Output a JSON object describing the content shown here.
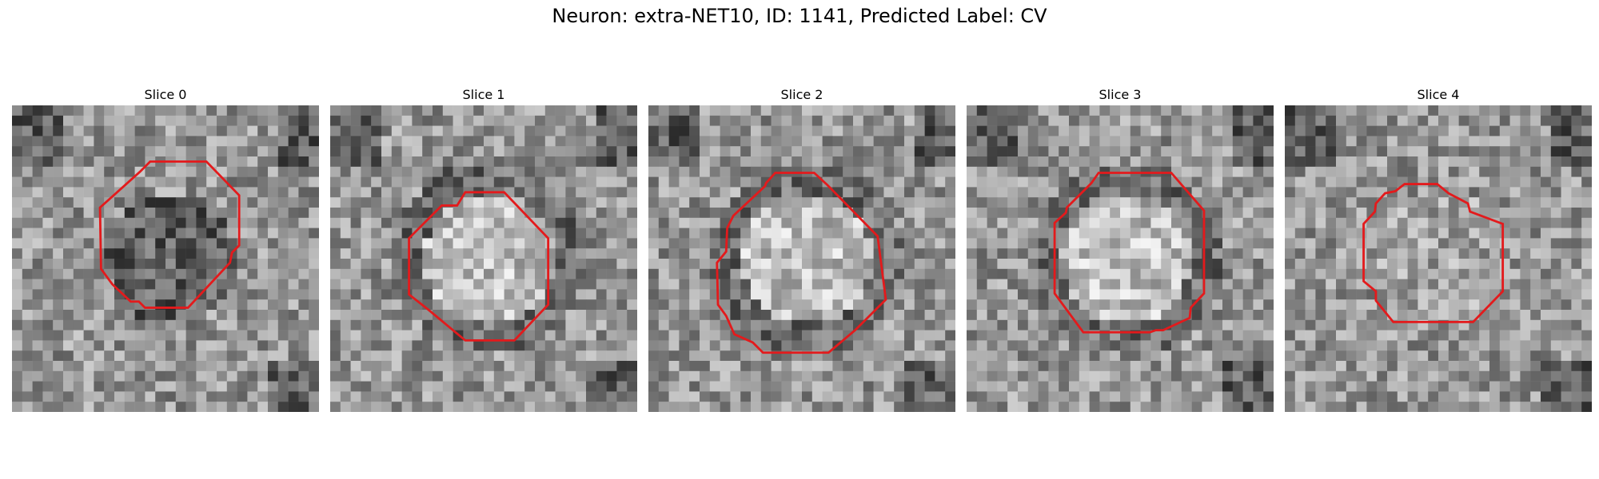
{
  "figure": {
    "title": "Neuron: extra-NET10, ID: 1141, Predicted Label: CV",
    "contour_color": "#e31a1c",
    "colormap": "gray"
  },
  "panels": [
    {
      "label": "Slice 0",
      "seed": 11,
      "center_tone": "dark"
    },
    {
      "label": "Slice 1",
      "seed": 23,
      "center_tone": "light"
    },
    {
      "label": "Slice 2",
      "seed": 37,
      "center_tone": "light"
    },
    {
      "label": "Slice 3",
      "seed": 41,
      "center_tone": "light"
    },
    {
      "label": "Slice 4",
      "seed": 59,
      "center_tone": "mid"
    }
  ]
}
